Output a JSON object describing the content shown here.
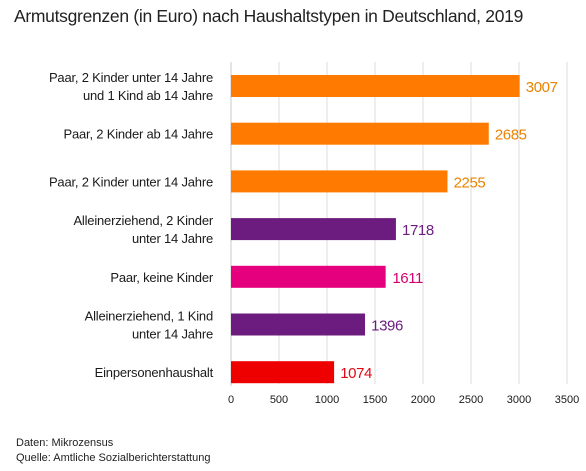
{
  "chart_data": {
    "type": "bar",
    "orientation": "horizontal",
    "title": "Armutsgrenzen (in Euro) nach Haushaltstypen in Deutschland, 2019",
    "categories": [
      [
        "Paar, 2 Kinder unter 14 Jahre",
        "und 1 Kind ab 14 Jahre"
      ],
      [
        "Paar, 2 Kinder ab 14 Jahre"
      ],
      [
        "Paar, 2 Kinder unter 14 Jahre"
      ],
      [
        "Alleinerziehend, 2 Kinder",
        "unter 14 Jahre"
      ],
      [
        "Paar, keine Kinder"
      ],
      [
        "Alleinerziehend, 1 Kind",
        "unter 14 Jahre"
      ],
      [
        "Einpersonenhaushalt"
      ]
    ],
    "values": [
      3007,
      2685,
      2255,
      1718,
      1611,
      1396,
      1074
    ],
    "colors": [
      "#FF7A00",
      "#FF7A00",
      "#FF7A00",
      "#6B1C7E",
      "#E5007D",
      "#6B1C7E",
      "#EE0000"
    ],
    "label_colors": [
      "#E98300",
      "#E98300",
      "#E98300",
      "#6B1C7E",
      "#D4006F",
      "#6B1C7E",
      "#E30613"
    ],
    "xlim": [
      0,
      3500
    ],
    "xticks": [
      0,
      500,
      1000,
      1500,
      2000,
      2500,
      3000,
      3500
    ],
    "grid": true,
    "xlabel": "",
    "ylabel": ""
  },
  "footer": {
    "source_line_1": "Daten: Mikrozensus",
    "source_line_2": "Quelle: Amtliche Sozialberichterstattung"
  }
}
